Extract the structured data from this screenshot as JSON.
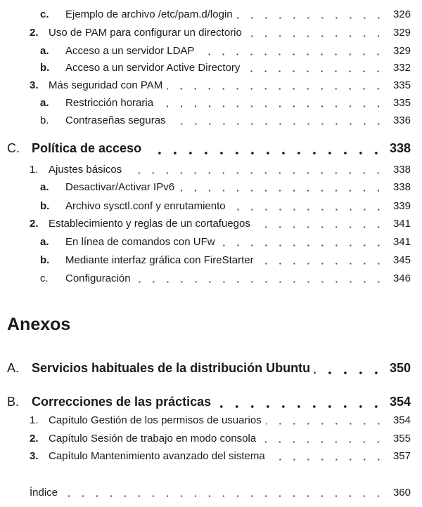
{
  "entries_top": [
    {
      "num": "c.",
      "text": "Ejemplo de archivo /etc/pam.d/login",
      "page": "326"
    },
    {
      "num": "2.",
      "text": "Uso de PAM para configurar un directorio",
      "page": "329"
    },
    {
      "num": "a.",
      "text": "Acceso a un servidor LDAP",
      "page": "329"
    },
    {
      "num": "b.",
      "text": "Acceso a un servidor Active Directory",
      "page": "332"
    },
    {
      "num": "3.",
      "text": "Más seguridad con PAM",
      "page": "335"
    },
    {
      "num": "a.",
      "text": "Restricción horaria",
      "page": "335"
    },
    {
      "num": "b.",
      "text": "Contraseñas seguras",
      "page": "336"
    }
  ],
  "section_c": {
    "num": "C.",
    "text": "Política de acceso",
    "page": "338",
    "items": [
      {
        "num": "1.",
        "text": "Ajustes básicos",
        "page": "338"
      },
      {
        "num": "a.",
        "text": "Desactivar/Activar IPv6",
        "page": "338"
      },
      {
        "num": "b.",
        "text": "Archivo sysctl.conf y enrutamiento",
        "page": "339"
      },
      {
        "num": "2.",
        "text": "Establecimiento y reglas de un cortafuegos",
        "page": "341"
      },
      {
        "num": "a.",
        "text": "En línea de comandos con UFw",
        "page": "341"
      },
      {
        "num": "b.",
        "text": "Mediante interfaz gráfica con FireStarter",
        "page": "345"
      },
      {
        "num": "c.",
        "text": "Configuración",
        "page": "346"
      }
    ]
  },
  "annexes_heading": "Anexos",
  "annex_a": {
    "num": "A.",
    "text": "Servicios habituales de la distribución Ubuntu",
    "page": "350"
  },
  "annex_b": {
    "num": "B.",
    "text": "Correcciones de las prácticas",
    "page": "354",
    "items": [
      {
        "num": "1.",
        "text": "Capítulo Gestión de los permisos de usuarios",
        "page": "354"
      },
      {
        "num": "2.",
        "text": "Capítulo Sesión de trabajo en modo consola",
        "page": "355"
      },
      {
        "num": "3.",
        "text": "Capítulo Mantenimiento avanzado del sistema",
        "page": "357"
      }
    ]
  },
  "index": {
    "text": "Índice",
    "page": "360"
  }
}
